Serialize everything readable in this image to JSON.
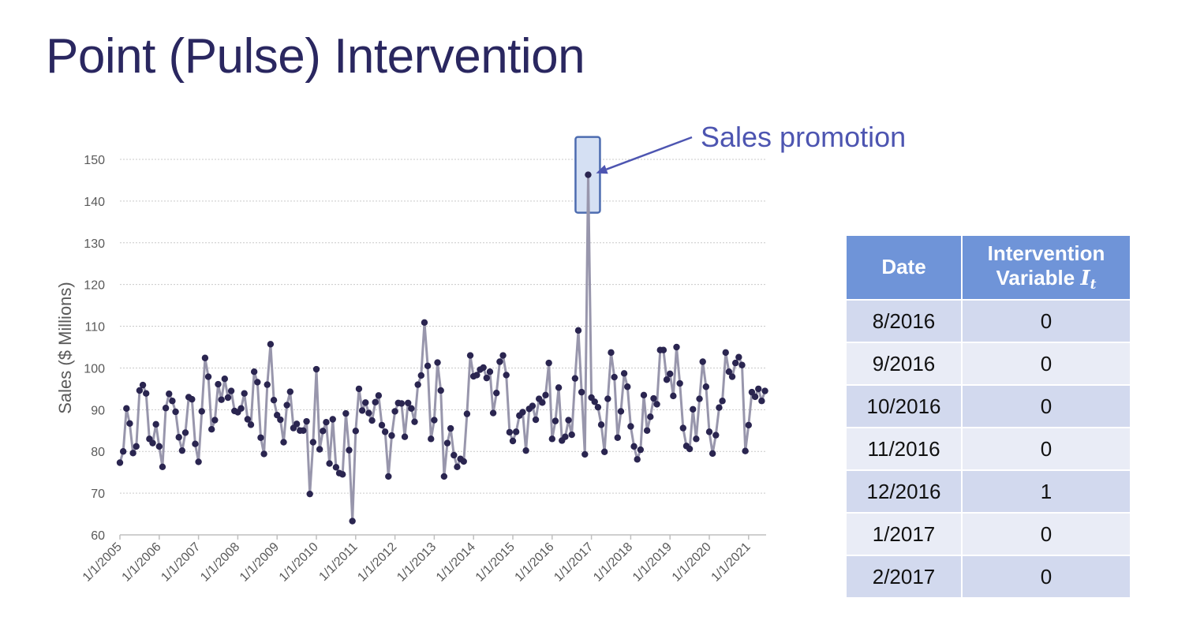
{
  "slide": {
    "title": "Point (Pulse) Intervention"
  },
  "annotation": {
    "text": "Sales promotion"
  },
  "colors": {
    "title": "#2a2760",
    "line": "#9896ac",
    "marker": "#2a2550",
    "annotation": "#4d55b1",
    "table_header": "#6f94d8",
    "table_row_a": "#d2d9ee",
    "table_row_b": "#e9ecf6"
  },
  "chart_data": {
    "type": "line",
    "title": "",
    "xlabel": "",
    "ylabel": "Sales ($ Millions)",
    "ylim": [
      60,
      150
    ],
    "yticks": [
      60,
      70,
      80,
      90,
      100,
      110,
      120,
      130,
      140,
      150
    ],
    "xticks": [
      "1/1/2005",
      "1/1/2006",
      "1/1/2007",
      "1/1/2008",
      "1/1/2009",
      "1/1/2010",
      "1/1/2011",
      "1/1/2012",
      "1/1/2013",
      "1/1/2014",
      "1/1/2015",
      "1/1/2016",
      "1/1/2017",
      "1/1/2018",
      "1/1/2019",
      "1/1/2020",
      "1/1/2021"
    ],
    "x_start": "1/2005",
    "x_frequency": "monthly",
    "grid": "horizontal dotted",
    "series": [
      {
        "values": [
          77.3,
          80,
          90.3,
          86.7,
          79.6,
          81.2,
          94.6,
          95.9,
          93.9,
          83,
          82,
          86.5,
          81.2,
          76.3,
          90.4,
          93.8,
          92.1,
          89.5,
          83.4,
          80.2,
          84.5,
          93,
          92.5,
          81.8,
          77.5,
          89.6,
          102.4,
          97.9,
          85.3,
          87.5,
          96.1,
          92.4,
          97.4,
          92.9,
          94.5,
          89.7,
          89.4,
          90.3,
          93.9,
          87.7,
          86.4,
          99.1,
          96.6,
          83.3,
          79.4,
          96,
          105.7,
          92.3,
          88.7,
          87.6,
          82.2,
          91.1,
          94.3,
          85.6,
          86.6,
          85,
          85,
          87.2,
          69.8,
          82.2,
          99.7,
          80.5,
          84.9,
          87,
          77.1,
          87.7,
          76.2,
          74.8,
          74.5,
          89.1,
          80.3,
          63.3,
          84.9,
          95,
          89.8,
          91.7,
          89.2,
          87.4,
          91.8,
          93.4,
          86.3,
          84.7,
          74,
          83.8,
          89.6,
          91.6,
          91.5,
          83.5,
          91.6,
          90.3,
          87.1,
          96,
          98.2,
          110.9,
          100.5,
          83,
          87.5,
          101.3,
          94.6,
          74,
          82,
          85.5,
          79.1,
          76.3,
          78.2,
          77.6,
          89,
          103,
          98,
          98.3,
          99.6,
          100.1,
          97.6,
          99.1,
          89.2,
          94,
          101.5,
          103,
          98.3,
          84.6,
          82.5,
          84.7,
          88.6,
          89.4,
          80.2,
          90.2,
          90.9,
          87.6,
          92.6,
          91.7,
          93.5,
          101.2,
          83,
          87.3,
          95.3,
          82.6,
          83.5,
          87.5,
          84,
          97.5,
          109,
          94.2,
          79.3,
          146.3,
          92.9,
          91.9,
          90.6,
          86.4,
          79.9,
          92.6,
          103.7,
          97.8,
          83.3,
          89.6,
          98.7,
          95.5,
          86,
          81.2,
          78.1,
          80.4,
          93.5,
          85,
          88.3,
          92.7,
          91.3,
          104.3,
          104.3,
          97.2,
          98.6,
          93.3,
          105,
          96.3,
          85.6,
          81.3,
          80.6,
          90.1,
          83,
          92.6,
          101.5,
          95.5,
          84.7,
          79.5,
          83.9,
          90.5,
          92.1,
          103.7,
          99.1,
          97.9,
          101.2,
          102.6,
          100.7,
          80.1,
          86.3,
          94.2,
          93.1,
          95,
          92.1,
          94.5
        ]
      }
    ],
    "highlight": {
      "label": "Sales promotion",
      "month": "12/2016",
      "value": 146.3
    }
  },
  "table": {
    "headers": {
      "date": "Date",
      "var_line1": "Intervention",
      "var_line2": "Variable",
      "var_symbol": "I",
      "var_sub": "t"
    },
    "rows": [
      {
        "date": "8/2016",
        "value": "0"
      },
      {
        "date": "9/2016",
        "value": "0"
      },
      {
        "date": "10/2016",
        "value": "0"
      },
      {
        "date": "11/2016",
        "value": "0"
      },
      {
        "date": "12/2016",
        "value": "1"
      },
      {
        "date": "1/2017",
        "value": "0"
      },
      {
        "date": "2/2017",
        "value": "0"
      }
    ]
  }
}
